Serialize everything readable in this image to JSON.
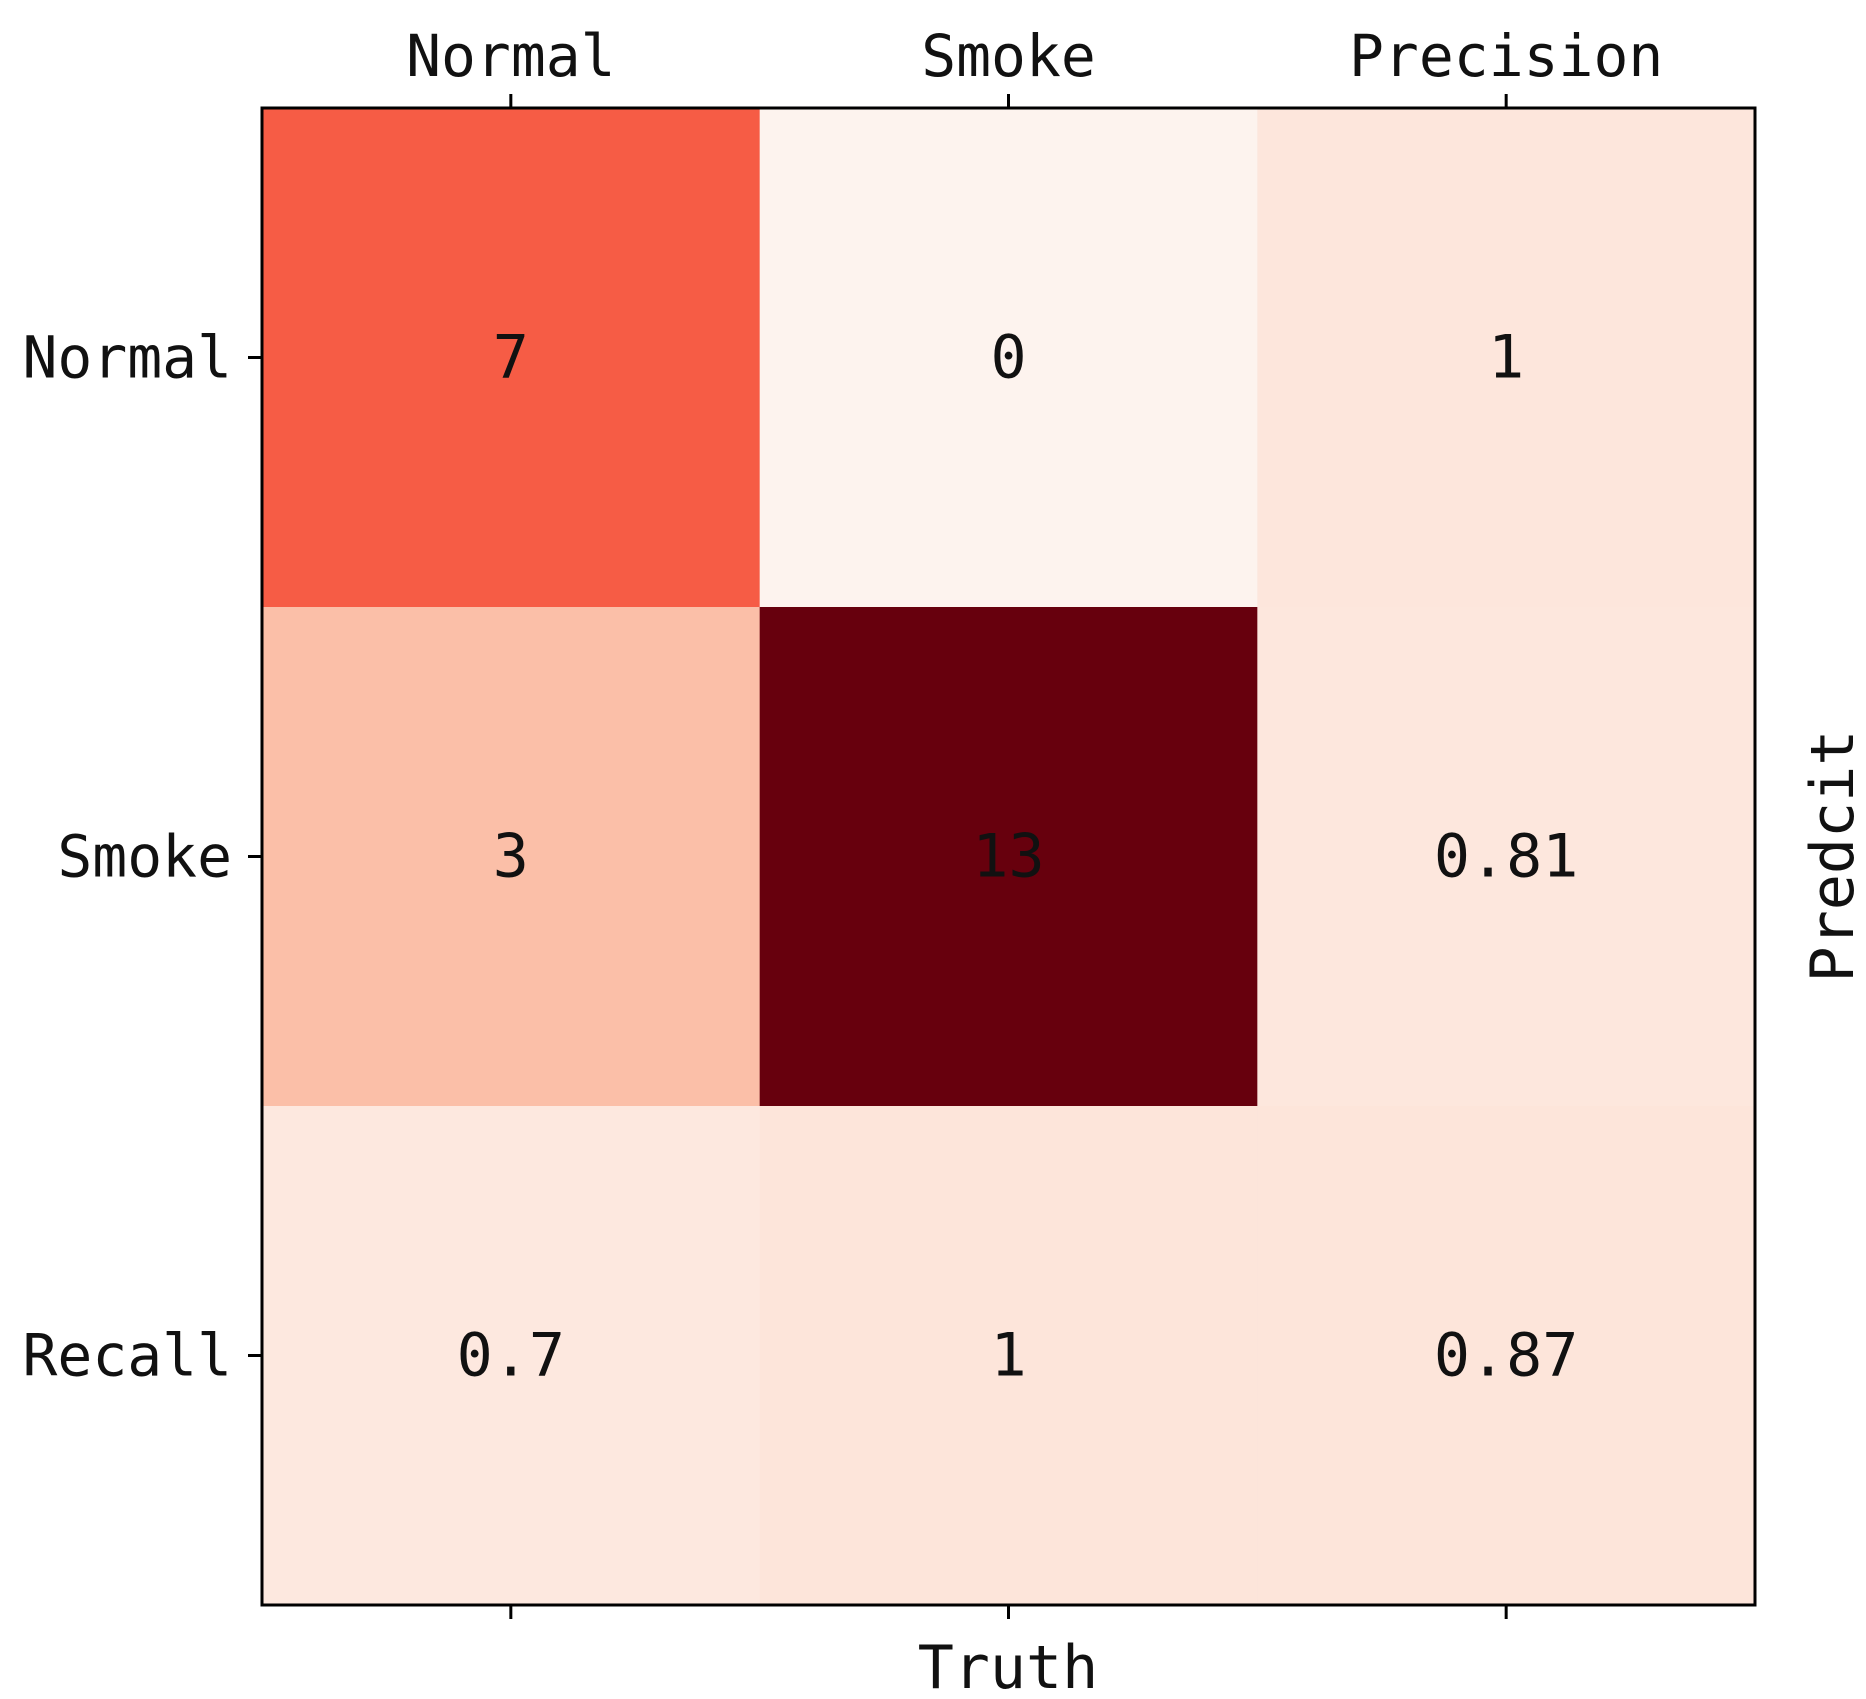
{
  "chart_data": {
    "type": "heatmap",
    "title": "",
    "xlabel": "Truth",
    "ylabel": "Predcit",
    "x_categories": [
      "Normal",
      "Smoke",
      "Precision"
    ],
    "y_categories": [
      "Normal",
      "Smoke",
      "Recall"
    ],
    "values": [
      [
        7,
        0,
        1
      ],
      [
        3,
        13,
        0.81
      ],
      [
        0.7,
        1,
        0.87
      ]
    ],
    "labels": [
      [
        "7",
        "0",
        "1"
      ],
      [
        "3",
        "13",
        "0.81"
      ],
      [
        "0.7",
        "1",
        "0.87"
      ]
    ],
    "colormap": "Reds",
    "cell_colors": [
      [
        "#f65c45",
        "#fdf3ee",
        "#fde6dc"
      ],
      [
        "#fbbfa8",
        "#67000d",
        "#fde7dd"
      ],
      [
        "#fde8df",
        "#fde5da",
        "#fde5da"
      ]
    ],
    "cell_text_colors": [
      [
        "#111111",
        "#111111",
        "#111111"
      ],
      [
        "#111111",
        "#111111",
        "#111111"
      ],
      [
        "#111111",
        "#111111",
        "#111111"
      ]
    ],
    "x_ticks_position": "top",
    "xlabel_position": "bottom",
    "ylabel_position": "right",
    "grid": false,
    "legend": "none"
  }
}
